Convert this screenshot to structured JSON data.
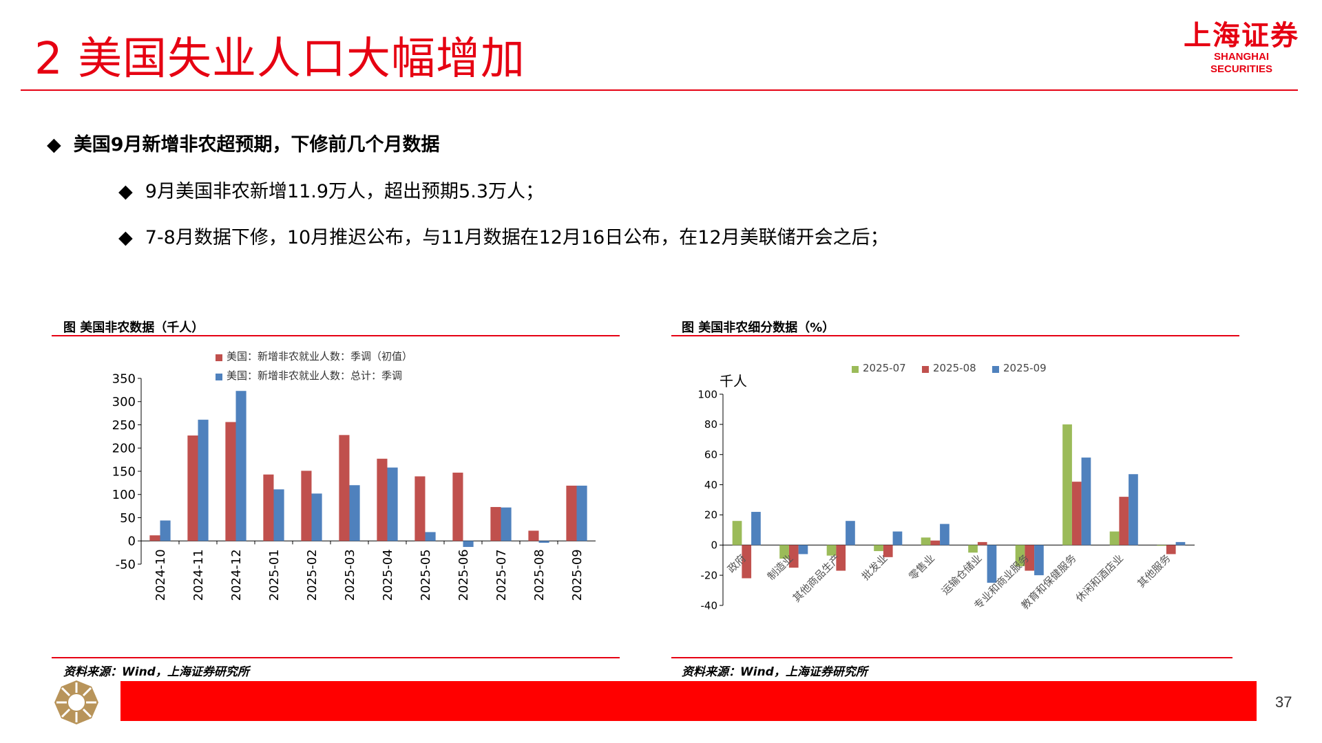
{
  "slide": {
    "title": "2 美国失业人口大幅增加",
    "logo_cn": "上海证券",
    "logo_en": "SHANGHAI SECURITIES",
    "page_number": "37",
    "brand_color": "#e60012"
  },
  "bullets": [
    {
      "symbol": "◆",
      "text": "美国9月新增非农超预期，下修前几个月数据"
    },
    {
      "symbol": "◆",
      "text": "9月美国非农新增11.9万人，超出预期5.3万人；"
    },
    {
      "symbol": "◆",
      "text": "7-8月数据下修，10月推迟公布，与11月数据在12月16日公布，在12月美联储开会之后；"
    }
  ],
  "figures": {
    "left_title": "图  美国非农数据（千人）",
    "right_title": "图  美国非农细分数据（%）",
    "left_source": "资料来源：Wind，上海证券研究所",
    "right_source": "资料来源：Wind，上海证券研究所"
  },
  "chart_data": [
    {
      "type": "bar",
      "title": "图  美国非农数据（千人）",
      "categories": [
        "2024-10",
        "2024-11",
        "2024-12",
        "2025-01",
        "2025-02",
        "2025-03",
        "2025-04",
        "2025-05",
        "2025-06",
        "2025-07",
        "2025-08",
        "2025-09"
      ],
      "series": [
        {
          "name": "美国：新增非农就业人数：季调（初值）",
          "color": "#c0504d",
          "values": [
            12,
            227,
            256,
            143,
            151,
            228,
            177,
            139,
            147,
            73,
            22,
            119
          ]
        },
        {
          "name": "美国：新增非农就业人数：总计：季调",
          "color": "#4f81bd",
          "values": [
            44,
            261,
            323,
            111,
            102,
            120,
            158,
            19,
            -13,
            72,
            -4,
            119
          ]
        }
      ],
      "ylim": [
        -50,
        350
      ],
      "yticks": [
        -50,
        0,
        50,
        100,
        150,
        200,
        250,
        300,
        350
      ],
      "grid": false,
      "legend": "top"
    },
    {
      "type": "bar",
      "title": "图  美国非农细分数据（%）",
      "ylabel": "千人",
      "categories": [
        "政府",
        "制造业",
        "其他商品生产",
        "批发业",
        "零售业",
        "运输仓储业",
        "专业和商业服务",
        "教育和保健服务",
        "休闲和酒店业",
        "其他服务"
      ],
      "series": [
        {
          "name": "2025-07",
          "color": "#9bbb59",
          "values": [
            16,
            -9,
            -7,
            -4,
            5,
            -5,
            -14,
            80,
            9,
            0
          ]
        },
        {
          "name": "2025-08",
          "color": "#c0504d",
          "values": [
            -22,
            -15,
            -17,
            -8,
            3,
            2,
            -17,
            42,
            32,
            -6
          ]
        },
        {
          "name": "2025-09",
          "color": "#4f81bd",
          "values": [
            22,
            -6,
            16,
            9,
            14,
            -25,
            -20,
            58,
            47,
            2
          ]
        }
      ],
      "ylim": [
        -40,
        100
      ],
      "yticks": [
        -40,
        -20,
        0,
        20,
        40,
        60,
        80,
        100
      ],
      "grid": false,
      "legend": "top"
    }
  ]
}
